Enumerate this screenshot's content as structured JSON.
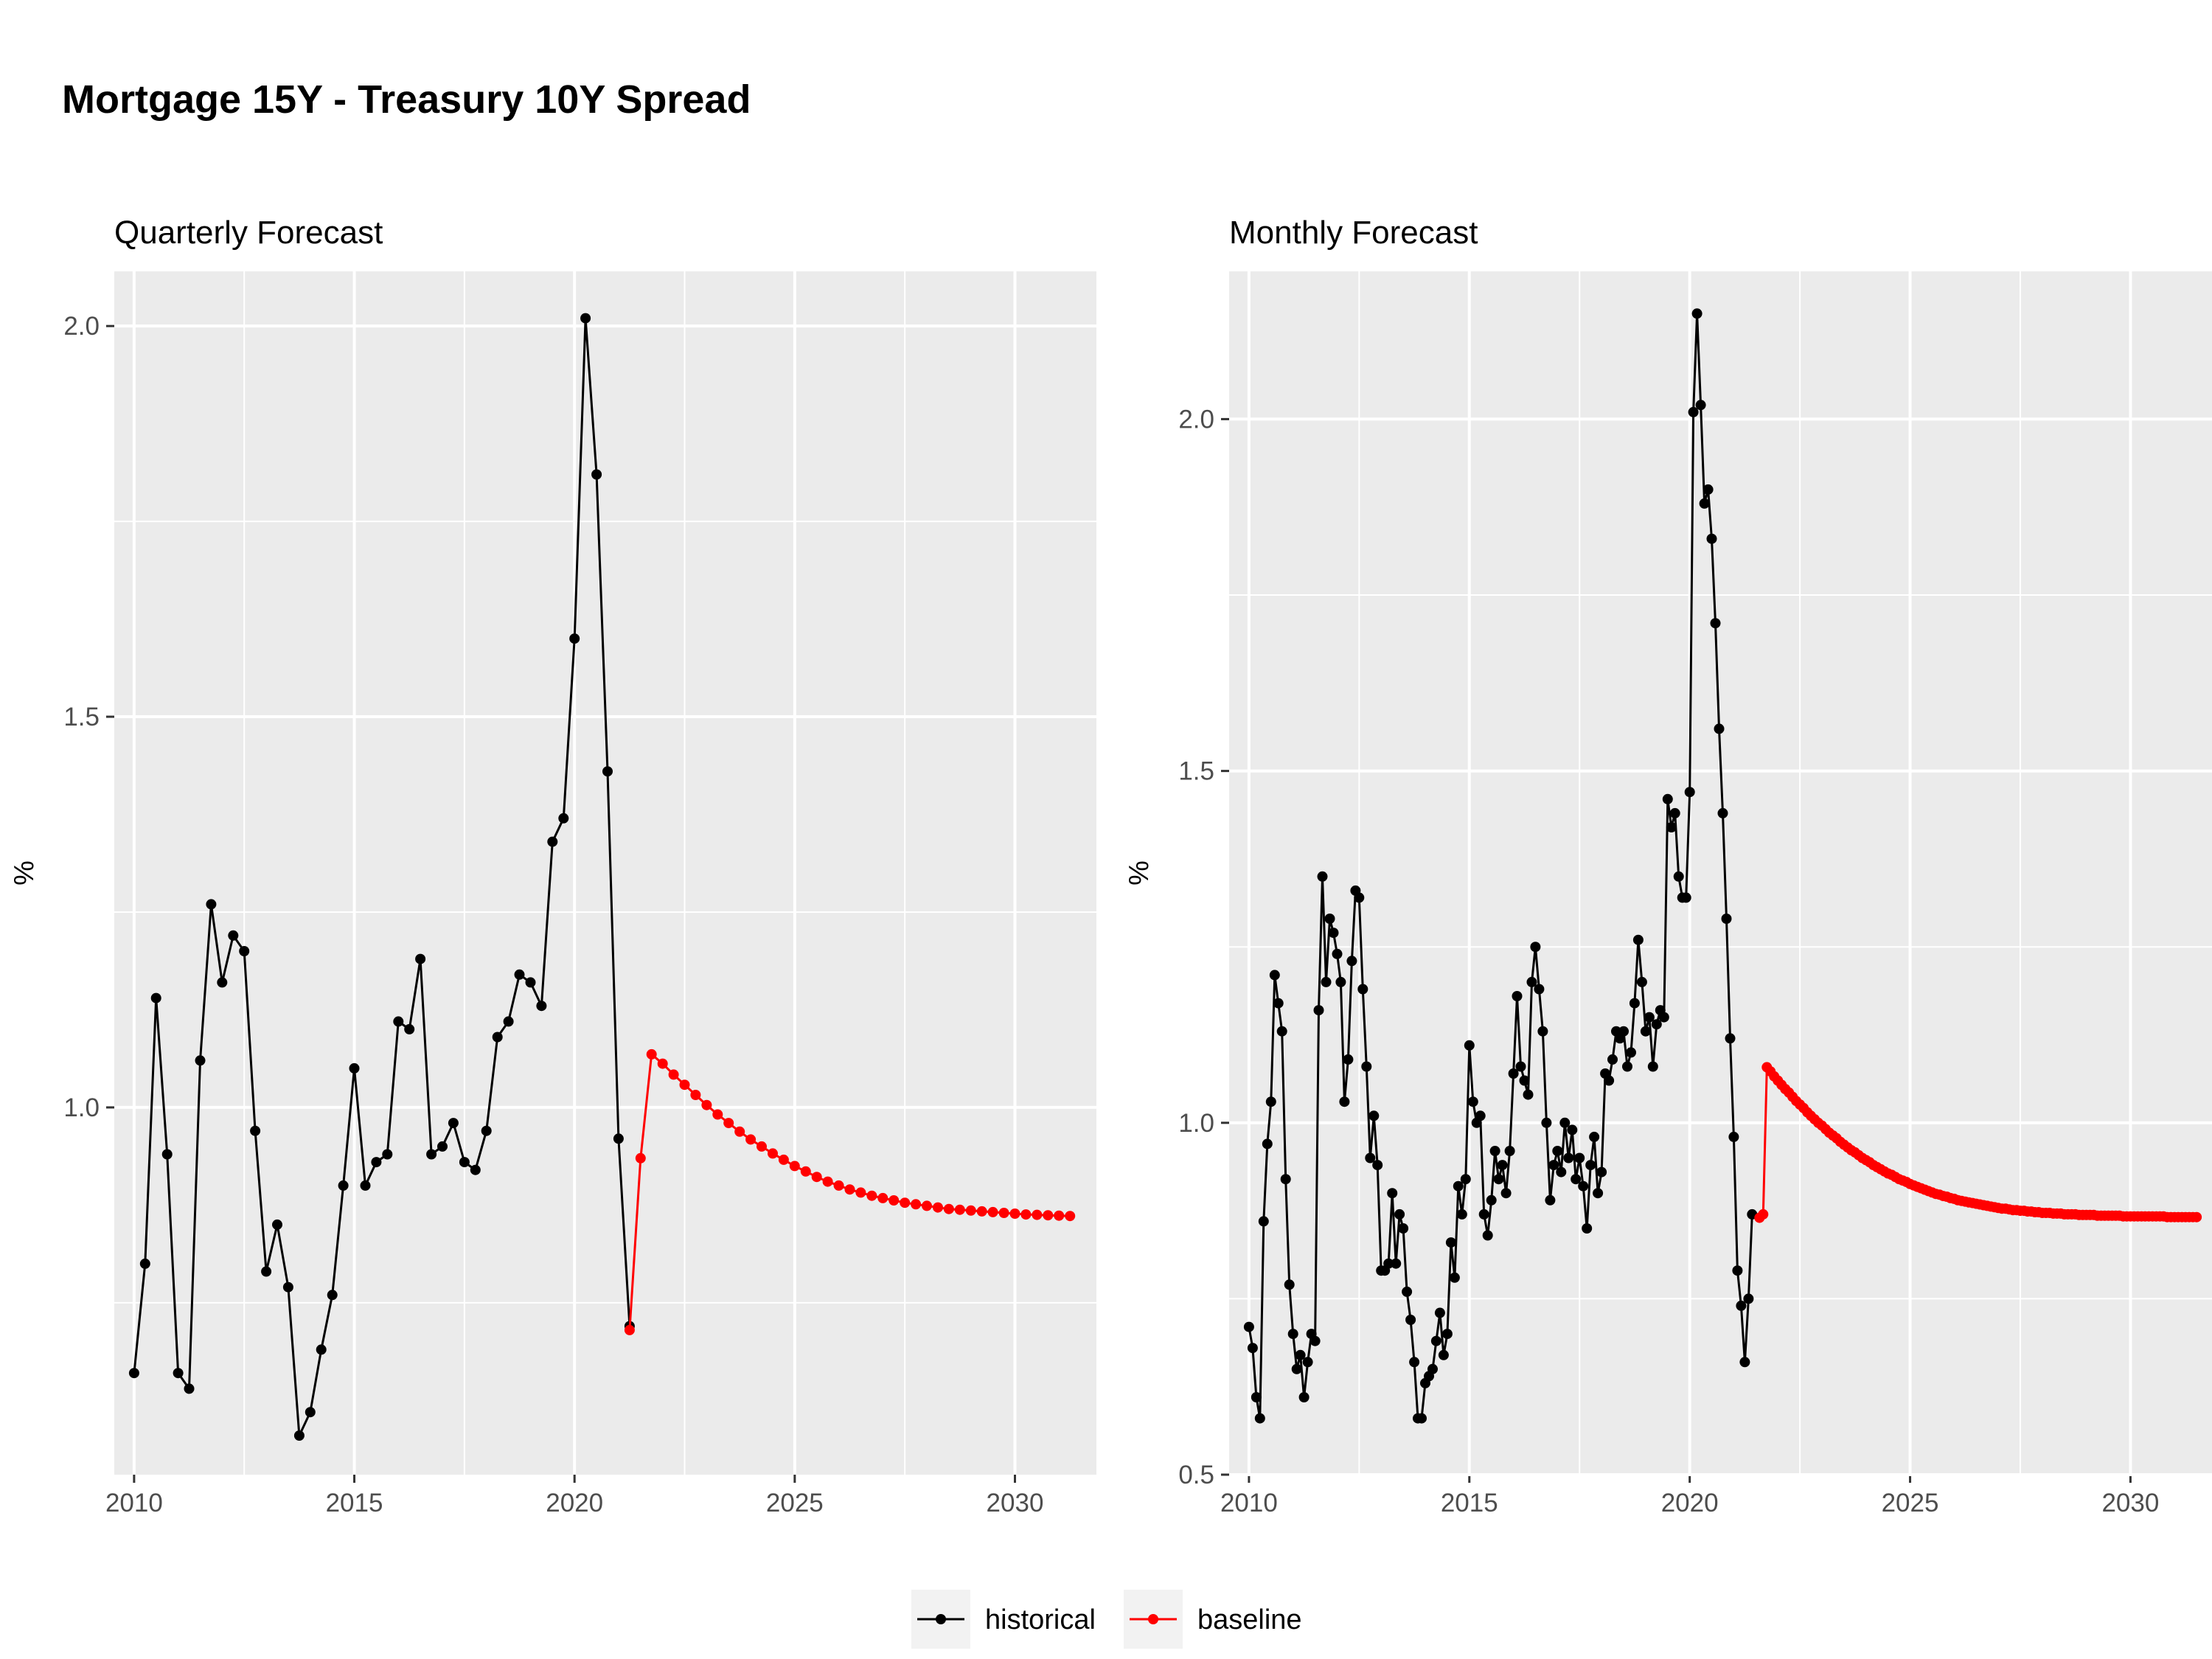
{
  "title": "Mortgage 15Y - Treasury 10Y Spread",
  "colors": {
    "historical": "#000000",
    "baseline": "#ff0000",
    "panel_bg": "#ebebeb",
    "grid": "#ffffff"
  },
  "legend": {
    "position": "bottom",
    "items": [
      {
        "key": "historical",
        "label": "historical"
      },
      {
        "key": "baseline",
        "label": "baseline"
      }
    ]
  },
  "chart_data": [
    {
      "type": "line",
      "subtitle": "Quarterly Forecast",
      "ylabel": "%",
      "xlabel": "",
      "xlim": [
        2009.55,
        2031.85
      ],
      "ylim": [
        0.53,
        2.07
      ],
      "xticks": [
        2010,
        2015,
        2020,
        2025,
        2030
      ],
      "yticks": [
        1.0,
        1.5,
        2.0
      ],
      "ytick_labels": [
        "1.0",
        "1.5",
        "2.0"
      ],
      "grid": true,
      "series": [
        {
          "name": "historical",
          "x": [
            2010.0,
            2010.25,
            2010.5,
            2010.75,
            2011.0,
            2011.25,
            2011.5,
            2011.75,
            2012.0,
            2012.25,
            2012.5,
            2012.75,
            2013.0,
            2013.25,
            2013.5,
            2013.75,
            2014.0,
            2014.25,
            2014.5,
            2014.75,
            2015.0,
            2015.25,
            2015.5,
            2015.75,
            2016.0,
            2016.25,
            2016.5,
            2016.75,
            2017.0,
            2017.25,
            2017.5,
            2017.75,
            2018.0,
            2018.25,
            2018.5,
            2018.75,
            2019.0,
            2019.25,
            2019.5,
            2019.75,
            2020.0,
            2020.25,
            2020.5,
            2020.75,
            2021.0,
            2021.25
          ],
          "y": [
            0.66,
            0.8,
            1.14,
            0.94,
            0.66,
            0.64,
            1.06,
            1.26,
            1.16,
            1.22,
            1.2,
            0.97,
            0.79,
            0.85,
            0.77,
            0.58,
            0.61,
            0.69,
            0.76,
            0.9,
            1.05,
            0.9,
            0.93,
            0.94,
            1.11,
            1.1,
            1.19,
            0.94,
            0.95,
            0.98,
            0.93,
            0.92,
            0.97,
            1.09,
            1.11,
            1.17,
            1.16,
            1.13,
            1.34,
            1.37,
            1.6,
            2.01,
            1.81,
            1.43,
            0.96,
            0.72
          ]
        },
        {
          "name": "baseline",
          "x": [
            2021.25,
            2021.5,
            2021.75,
            2022.0,
            2022.25,
            2022.5,
            2022.75,
            2023.0,
            2023.25,
            2023.5,
            2023.75,
            2024.0,
            2024.25,
            2024.5,
            2024.75,
            2025.0,
            2025.25,
            2025.5,
            2025.75,
            2026.0,
            2026.25,
            2026.5,
            2026.75,
            2027.0,
            2027.25,
            2027.5,
            2027.75,
            2028.0,
            2028.25,
            2028.5,
            2028.75,
            2029.0,
            2029.25,
            2029.5,
            2029.75,
            2030.0,
            2030.25,
            2030.5,
            2030.75,
            2031.0,
            2031.25
          ],
          "y": [
            0.715,
            0.935,
            1.068,
            1.056,
            1.042,
            1.029,
            1.016,
            1.003,
            0.991,
            0.98,
            0.969,
            0.959,
            0.95,
            0.941,
            0.933,
            0.925,
            0.918,
            0.911,
            0.905,
            0.9,
            0.895,
            0.891,
            0.887,
            0.884,
            0.881,
            0.878,
            0.876,
            0.874,
            0.872,
            0.87,
            0.869,
            0.868,
            0.867,
            0.866,
            0.865,
            0.864,
            0.863,
            0.8625,
            0.862,
            0.8615,
            0.861
          ]
        }
      ]
    },
    {
      "type": "line",
      "subtitle": "Monthly Forecast",
      "ylabel": "%",
      "xlabel": "",
      "xlim": [
        2009.55,
        2031.85
      ],
      "ylim": [
        0.5,
        2.21
      ],
      "xticks": [
        2010,
        2015,
        2020,
        2025,
        2030
      ],
      "yticks": [
        0.5,
        1.0,
        1.5,
        2.0
      ],
      "ytick_labels": [
        "0.5",
        "1.0",
        "1.5",
        "2.0"
      ],
      "grid": true,
      "series": [
        {
          "name": "historical",
          "x_start": 2010.0,
          "x_step": 0.0833333,
          "y": [
            0.71,
            0.68,
            0.61,
            0.58,
            0.86,
            0.97,
            1.03,
            1.21,
            1.17,
            1.13,
            0.92,
            0.77,
            0.7,
            0.65,
            0.67,
            0.61,
            0.66,
            0.7,
            0.69,
            1.16,
            1.35,
            1.2,
            1.29,
            1.27,
            1.24,
            1.2,
            1.03,
            1.09,
            1.23,
            1.33,
            1.32,
            1.19,
            1.08,
            0.95,
            1.01,
            0.94,
            0.79,
            0.79,
            0.8,
            0.9,
            0.8,
            0.87,
            0.85,
            0.76,
            0.72,
            0.66,
            0.58,
            0.58,
            0.63,
            0.64,
            0.65,
            0.69,
            0.73,
            0.67,
            0.7,
            0.83,
            0.78,
            0.91,
            0.87,
            0.92,
            1.11,
            1.03,
            1.0,
            1.01,
            0.87,
            0.84,
            0.89,
            0.96,
            0.92,
            0.94,
            0.9,
            0.96,
            1.07,
            1.18,
            1.08,
            1.06,
            1.04,
            1.2,
            1.25,
            1.19,
            1.13,
            1.0,
            0.89,
            0.94,
            0.96,
            0.93,
            1.0,
            0.95,
            0.99,
            0.92,
            0.95,
            0.91,
            0.85,
            0.94,
            0.98,
            0.9,
            0.93,
            1.07,
            1.06,
            1.09,
            1.13,
            1.12,
            1.13,
            1.08,
            1.1,
            1.17,
            1.26,
            1.2,
            1.13,
            1.15,
            1.08,
            1.14,
            1.16,
            1.15,
            1.46,
            1.42,
            1.44,
            1.35,
            1.32,
            1.32,
            1.47,
            2.01,
            2.15,
            2.02,
            1.88,
            1.9,
            1.83,
            1.71,
            1.56,
            1.44,
            1.29,
            1.12,
            0.98,
            0.79,
            0.74,
            0.66,
            0.75,
            0.87
          ]
        },
        {
          "name": "baseline",
          "x": [
            2021.5833,
            2021.6667,
            2021.75,
            2021.8333,
            2021.9167,
            2022.0,
            2022.0833,
            2022.1667,
            2022.25,
            2022.3333,
            2022.4167,
            2022.5,
            2022.5833,
            2022.6667,
            2022.75,
            2022.8333,
            2022.9167,
            2023.0,
            2023.0833,
            2023.1667,
            2023.25,
            2023.3333,
            2023.4167,
            2023.5,
            2023.5833,
            2023.6667,
            2023.75,
            2023.8333,
            2023.9167,
            2024.0,
            2024.0833,
            2024.1667,
            2024.25,
            2024.3333,
            2024.4167,
            2024.5,
            2024.5833,
            2024.6667,
            2024.75,
            2024.8333,
            2024.9167,
            2025.0,
            2025.0833,
            2025.1667,
            2025.25,
            2025.3333,
            2025.4167,
            2025.5,
            2025.5833,
            2025.6667,
            2025.75,
            2025.8333,
            2025.9167,
            2026.0,
            2026.0833,
            2026.1667,
            2026.25,
            2026.3333,
            2026.4167,
            2026.5,
            2026.5833,
            2026.6667,
            2026.75,
            2026.8333,
            2026.9167,
            2027.0,
            2027.0833,
            2027.1667,
            2027.25,
            2027.3333,
            2027.4167,
            2027.5,
            2027.5833,
            2027.6667,
            2027.75,
            2027.8333,
            2027.9167,
            2028.0,
            2028.0833,
            2028.1667,
            2028.25,
            2028.3333,
            2028.4167,
            2028.5,
            2028.5833,
            2028.6667,
            2028.75,
            2028.8333,
            2028.9167,
            2029.0,
            2029.0833,
            2029.1667,
            2029.25,
            2029.3333,
            2029.4167,
            2029.5,
            2029.5833,
            2029.6667,
            2029.75,
            2029.8333,
            2029.9167,
            2030.0,
            2030.0833,
            2030.1667,
            2030.25,
            2030.3333,
            2030.4167,
            2030.5,
            2030.5833,
            2030.6667,
            2030.75,
            2030.8333,
            2030.9167,
            2031.0,
            2031.0833,
            2031.1667,
            2031.25,
            2031.3333,
            2031.4167,
            2031.5
          ],
          "y": [
            0.865,
            0.87,
            1.079,
            1.073,
            1.066,
            1.06,
            1.054,
            1.048,
            1.043,
            1.037,
            1.031,
            1.026,
            1.021,
            1.015,
            1.01,
            1.005,
            1.0,
            0.996,
            0.991,
            0.986,
            0.982,
            0.978,
            0.973,
            0.969,
            0.965,
            0.961,
            0.958,
            0.954,
            0.95,
            0.947,
            0.944,
            0.94,
            0.937,
            0.934,
            0.931,
            0.928,
            0.926,
            0.923,
            0.92,
            0.918,
            0.916,
            0.913,
            0.911,
            0.909,
            0.907,
            0.905,
            0.903,
            0.901,
            0.899,
            0.898,
            0.896,
            0.895,
            0.893,
            0.892,
            0.89,
            0.889,
            0.888,
            0.887,
            0.886,
            0.885,
            0.884,
            0.883,
            0.882,
            0.881,
            0.88,
            0.879,
            0.878,
            0.878,
            0.877,
            0.876,
            0.876,
            0.875,
            0.875,
            0.874,
            0.874,
            0.873,
            0.873,
            0.872,
            0.872,
            0.872,
            0.871,
            0.871,
            0.871,
            0.87,
            0.87,
            0.87,
            0.87,
            0.869,
            0.869,
            0.869,
            0.869,
            0.869,
            0.868,
            0.868,
            0.868,
            0.868,
            0.868,
            0.868,
            0.868,
            0.867,
            0.867,
            0.867,
            0.867,
            0.867,
            0.867,
            0.867,
            0.867,
            0.867,
            0.867,
            0.867,
            0.867,
            0.866,
            0.866,
            0.866,
            0.866,
            0.866,
            0.866,
            0.866,
            0.866,
            0.866
          ]
        }
      ]
    }
  ]
}
